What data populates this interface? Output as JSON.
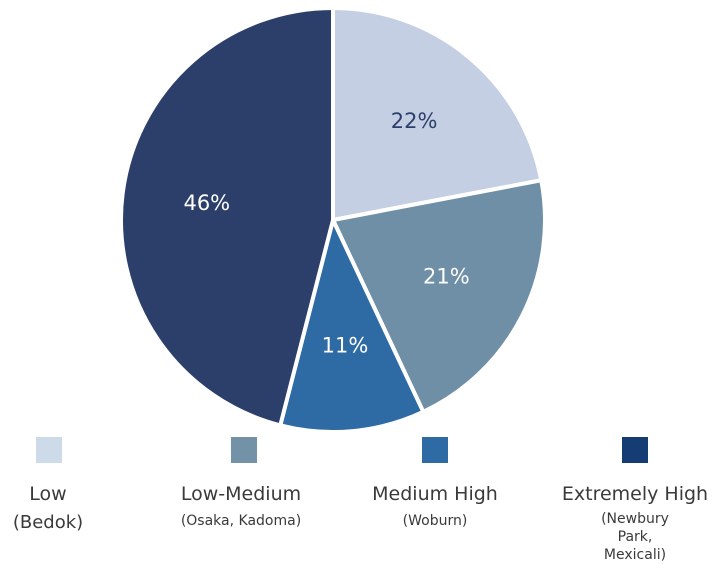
{
  "chart_data": {
    "type": "pie",
    "slices": [
      {
        "label": "Low",
        "sublabel": "(Bedok)",
        "value": 22,
        "value_label": "22%",
        "color": "#c5cfe3",
        "text_color": "#2c3e6b"
      },
      {
        "label": "Low-Medium",
        "sublabel": "(Osaka, Kadoma)",
        "value": 21,
        "value_label": "21%",
        "color": "#6e8fa6",
        "text_color": "#ffffff"
      },
      {
        "label": "Medium High",
        "sublabel": "(Woburn)",
        "value": 11,
        "value_label": "11%",
        "color": "#2e6aa3",
        "text_color": "#ffffff"
      },
      {
        "label": "Extremely High",
        "sublabel": "(Newbury Park,\nMexicali)",
        "value": 46,
        "value_label": "46%",
        "color": "#2c3f6b",
        "text_color": "#ffffff"
      }
    ],
    "legend": {
      "placement": "bottom",
      "swatch_colors": [
        "#ccdae9",
        "#7391a7",
        "#2e6aa3",
        "#163d73"
      ]
    }
  }
}
